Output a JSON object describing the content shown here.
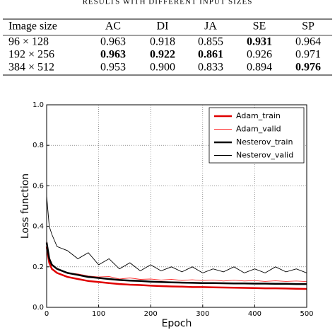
{
  "table": {
    "caption": "RESULTS WITH DIFFERENT INPUT SIZES",
    "header": [
      "Image size",
      "AC",
      "DI",
      "JA",
      "SE",
      "SP"
    ],
    "rows": [
      [
        "96 × 128",
        "0.963",
        "0.918",
        "0.855",
        "0.931",
        "0.964"
      ],
      [
        "192 × 256",
        "0.963",
        "0.922",
        "0.861",
        "0.926",
        "0.971"
      ],
      [
        "384 × 512",
        "0.953",
        "0.900",
        "0.833",
        "0.894",
        "0.976"
      ]
    ],
    "bold": [
      [
        4
      ],
      [
        1,
        2,
        3
      ],
      [
        5
      ]
    ]
  },
  "chart_data": {
    "type": "line",
    "xlabel": "Epoch",
    "ylabel": "Loss function",
    "x": [
      0,
      5,
      10,
      20,
      40,
      60,
      80,
      100,
      120,
      140,
      160,
      180,
      200,
      220,
      240,
      260,
      280,
      300,
      320,
      340,
      360,
      380,
      400,
      420,
      440,
      460,
      480,
      500
    ],
    "series": [
      {
        "name": "Adam_train",
        "color": "#e00000",
        "width": "thick",
        "values": [
          0.3,
          0.22,
          0.19,
          0.17,
          0.15,
          0.14,
          0.13,
          0.125,
          0.12,
          0.115,
          0.112,
          0.11,
          0.107,
          0.105,
          0.103,
          0.102,
          0.1,
          0.1,
          0.099,
          0.098,
          0.097,
          0.096,
          0.095,
          0.094,
          0.094,
          0.093,
          0.092,
          0.091
        ]
      },
      {
        "name": "Adam_valid",
        "color": "#ff3030",
        "width": "thin",
        "values": [
          0.33,
          0.25,
          0.21,
          0.19,
          0.17,
          0.165,
          0.155,
          0.15,
          0.152,
          0.14,
          0.145,
          0.138,
          0.14,
          0.135,
          0.138,
          0.133,
          0.136,
          0.132,
          0.135,
          0.13,
          0.134,
          0.13,
          0.132,
          0.128,
          0.131,
          0.128,
          0.13,
          0.127
        ]
      },
      {
        "name": "Nesterov_train",
        "color": "#000000",
        "width": "thick",
        "values": [
          0.32,
          0.24,
          0.21,
          0.19,
          0.17,
          0.16,
          0.15,
          0.145,
          0.14,
          0.135,
          0.132,
          0.13,
          0.127,
          0.125,
          0.123,
          0.122,
          0.121,
          0.12,
          0.12,
          0.119,
          0.118,
          0.118,
          0.117,
          0.117,
          0.116,
          0.116,
          0.115,
          0.115
        ]
      },
      {
        "name": "Nesterov_valid",
        "color": "#000000",
        "width": "thin",
        "values": [
          0.55,
          0.4,
          0.36,
          0.3,
          0.28,
          0.24,
          0.27,
          0.21,
          0.24,
          0.19,
          0.22,
          0.18,
          0.21,
          0.18,
          0.2,
          0.175,
          0.2,
          0.17,
          0.19,
          0.175,
          0.2,
          0.17,
          0.19,
          0.17,
          0.2,
          0.175,
          0.19,
          0.17
        ]
      }
    ],
    "xlim": [
      0,
      500
    ],
    "ylim": [
      0,
      1
    ],
    "xticks": [
      0,
      100,
      200,
      300,
      400,
      500
    ],
    "yticks": [
      {
        "value": 0,
        "label": "0.0"
      },
      {
        "value": 0.2,
        "label": "0.2"
      },
      {
        "value": 0.4,
        "label": "0.4"
      },
      {
        "value": 0.6,
        "label": "0.6"
      },
      {
        "value": 0.8,
        "label": "0.8"
      },
      {
        "value": 1,
        "label": "1.0"
      }
    ],
    "grid": true,
    "legend": "upper right"
  }
}
